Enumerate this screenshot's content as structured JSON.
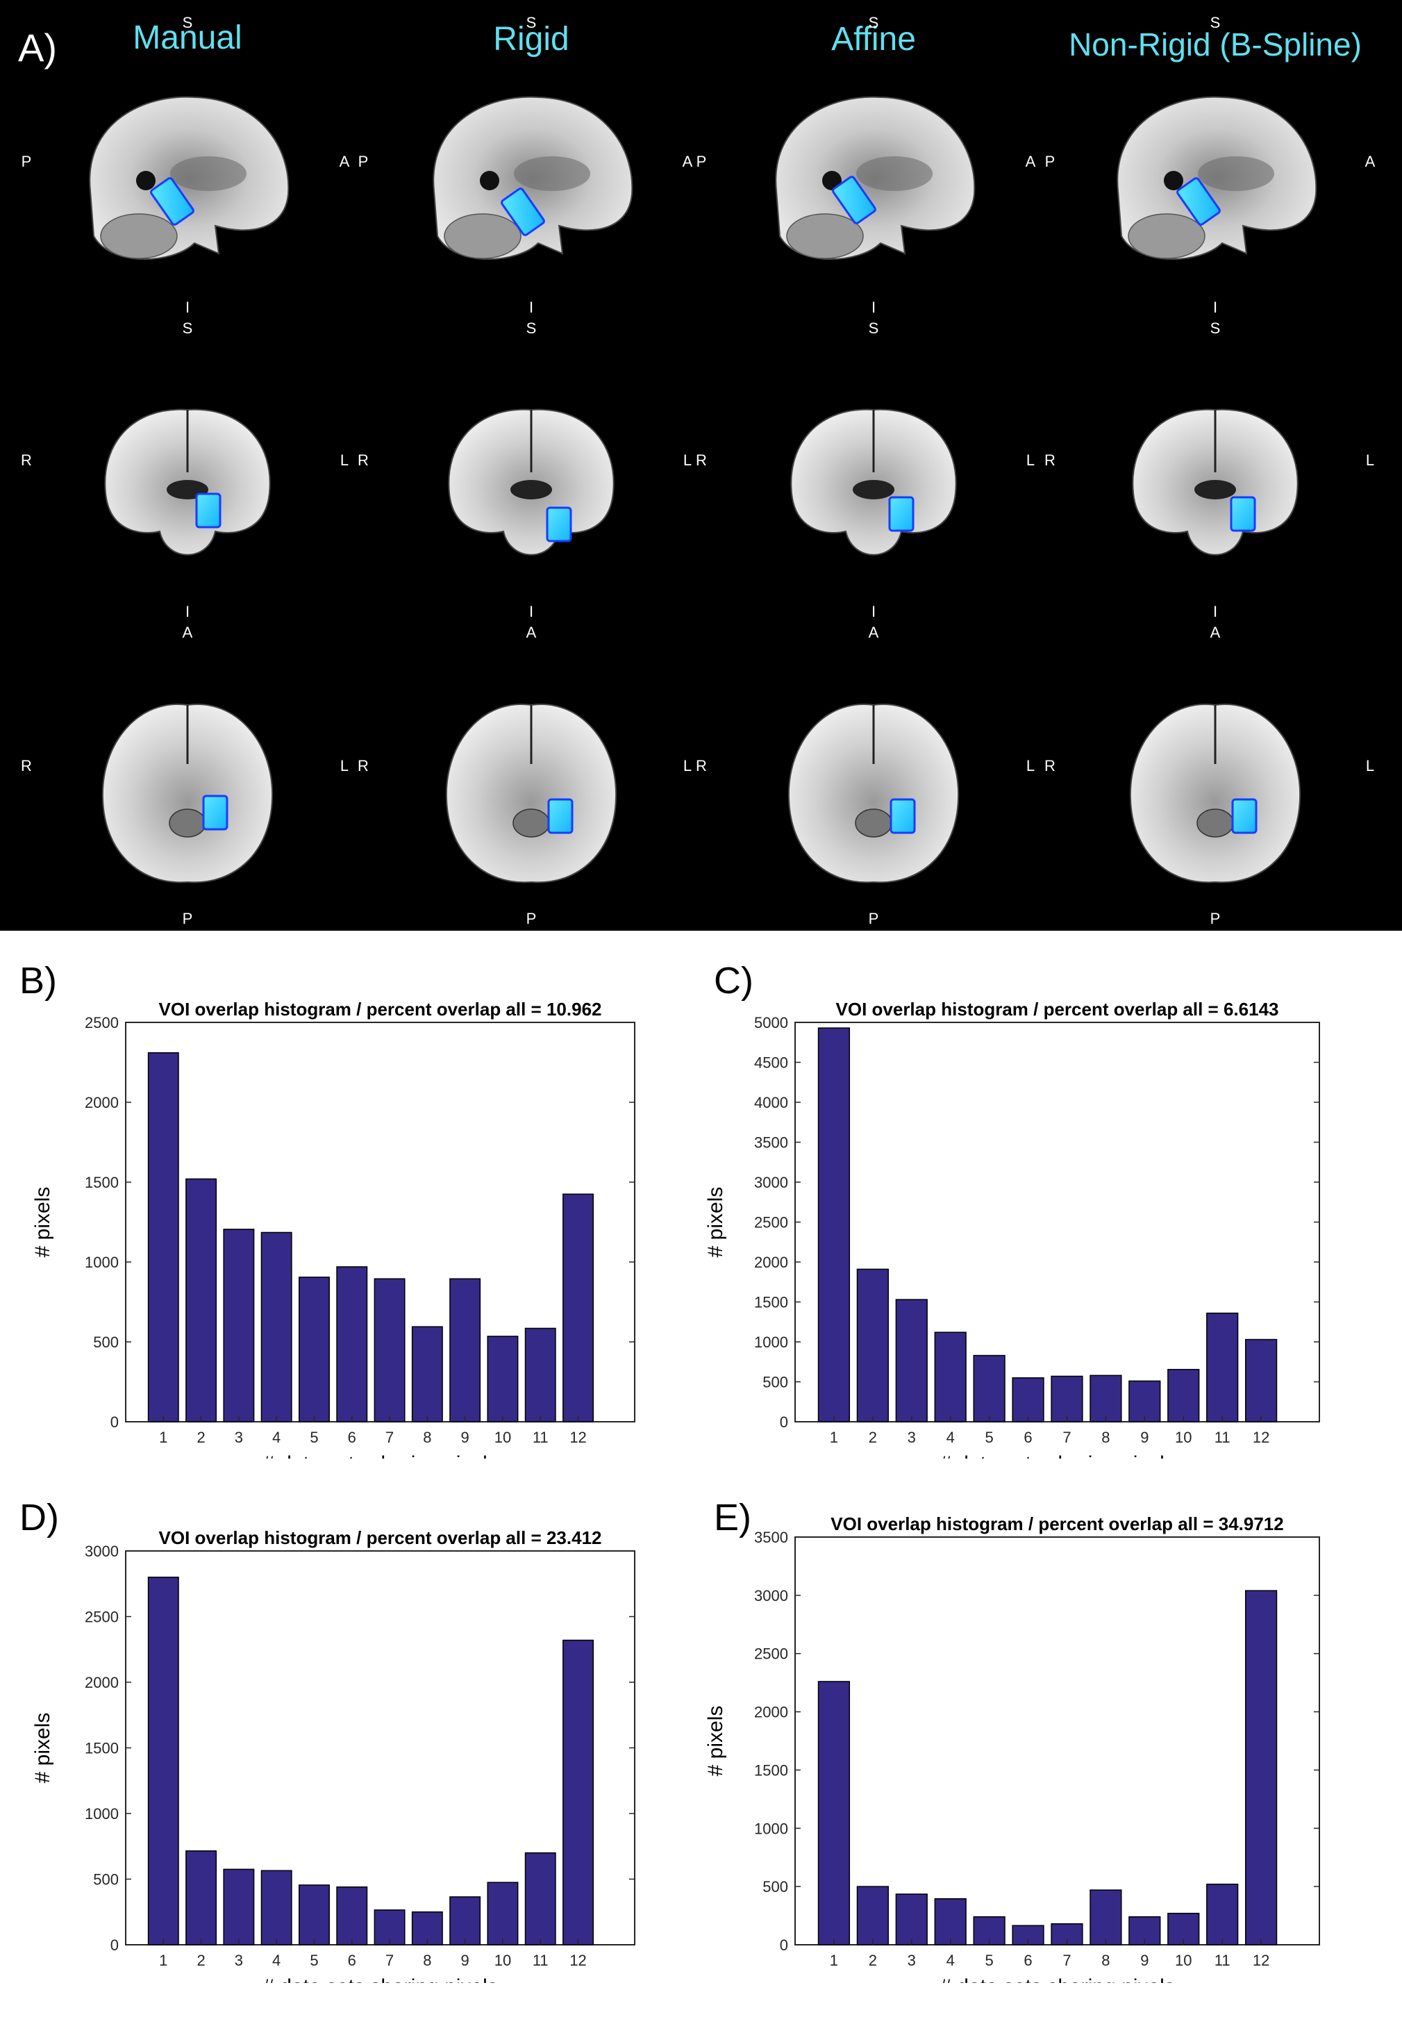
{
  "panel_a": {
    "letter": "A)",
    "column_titles": [
      "Manual",
      "Rigid",
      "Affine",
      "Non-Rigid (B-Spline)"
    ],
    "views": [
      {
        "view": "sagittal",
        "top": "S",
        "bottom": "I",
        "left": "P",
        "right": "A"
      },
      {
        "view": "coronal",
        "top": "S",
        "bottom": "I",
        "left": "R",
        "right": "L"
      },
      {
        "view": "axial",
        "top": "A",
        "bottom": "P",
        "left": "R",
        "right": "L"
      }
    ],
    "colors": {
      "background": "#000000",
      "title": "#5fe0f0",
      "label": "#ffffff",
      "voi": "#19c8ff",
      "voi_edge": "#1a3cff"
    }
  },
  "chart_data": [
    {
      "panel": "B)",
      "type": "bar",
      "title": "VOI overlap histogram / percent overlap all = 10.962",
      "xlabel": "# data sets sharing pixels",
      "ylabel": "# pixels",
      "categories": [
        "1",
        "2",
        "3",
        "4",
        "5",
        "6",
        "7",
        "8",
        "9",
        "10",
        "11",
        "12"
      ],
      "values": [
        2310,
        1520,
        1205,
        1185,
        905,
        970,
        895,
        595,
        895,
        535,
        585,
        1425
      ],
      "ylim": [
        0,
        2500
      ],
      "yticks": [
        0,
        500,
        1000,
        1500,
        2000,
        2500
      ],
      "bar_color": "#352a87"
    },
    {
      "panel": "C)",
      "type": "bar",
      "title": "VOI overlap histogram / percent overlap all = 6.6143",
      "xlabel": "# data sets sharing pixels",
      "ylabel": "# pixels",
      "categories": [
        "1",
        "2",
        "3",
        "4",
        "5",
        "6",
        "7",
        "8",
        "9",
        "10",
        "11",
        "12"
      ],
      "values": [
        4930,
        1910,
        1530,
        1120,
        830,
        550,
        570,
        580,
        510,
        655,
        1360,
        1030
      ],
      "ylim": [
        0,
        5000
      ],
      "yticks": [
        0,
        500,
        1000,
        1500,
        2000,
        2500,
        3000,
        3500,
        4000,
        4500,
        5000
      ],
      "bar_color": "#352a87"
    },
    {
      "panel": "D)",
      "type": "bar",
      "title": "VOI overlap histogram / percent overlap all = 23.412",
      "xlabel": "# data sets sharing pixels",
      "ylabel": "# pixels",
      "categories": [
        "1",
        "2",
        "3",
        "4",
        "5",
        "6",
        "7",
        "8",
        "9",
        "10",
        "11",
        "12"
      ],
      "values": [
        2800,
        715,
        575,
        565,
        455,
        440,
        265,
        250,
        365,
        475,
        700,
        2320
      ],
      "ylim": [
        0,
        3000
      ],
      "yticks": [
        0,
        500,
        1000,
        1500,
        2000,
        2500,
        3000
      ],
      "bar_color": "#352a87"
    },
    {
      "panel": "E)",
      "type": "bar",
      "title": "VOI overlap histogram / percent overlap all = 34.9712",
      "xlabel": "# data sets sharing pixels",
      "ylabel": "# pixels",
      "categories": [
        "1",
        "2",
        "3",
        "4",
        "5",
        "6",
        "7",
        "8",
        "9",
        "10",
        "11",
        "12"
      ],
      "values": [
        2260,
        500,
        435,
        395,
        240,
        165,
        180,
        470,
        240,
        270,
        520,
        3040
      ],
      "ylim": [
        0,
        3500
      ],
      "yticks": [
        0,
        500,
        1000,
        1500,
        2000,
        2500,
        3000,
        3500
      ],
      "bar_color": "#352a87"
    }
  ]
}
